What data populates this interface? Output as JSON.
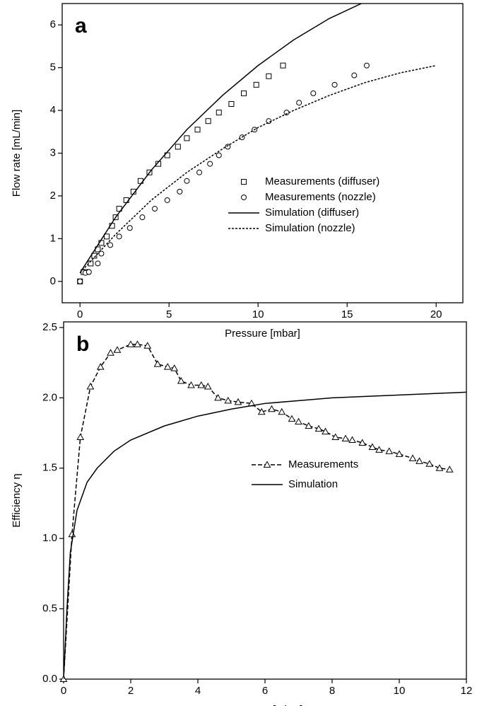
{
  "chart_data": [
    {
      "type": "line",
      "label": "a",
      "x_label": "Pressure [mbar]",
      "y_label": "Flow rate [mL/min]",
      "xlim": [
        -1,
        21.5
      ],
      "ylim": [
        -0.5,
        6.5
      ],
      "xticks": [
        0,
        5,
        10,
        15,
        20
      ],
      "yticks": [
        0,
        1,
        2,
        3,
        4,
        5,
        6
      ],
      "legend": "lower right",
      "series": [
        {
          "name": "Measurements (diffuser)",
          "color": "#000000",
          "marker": "square",
          "line": "none",
          "x": [
            0,
            0.2,
            0.4,
            0.6,
            0.8,
            1.0,
            1.2,
            1.5,
            1.8,
            2.0,
            2.2,
            2.6,
            3.0,
            3.4,
            3.9,
            4.4,
            4.9,
            5.5,
            6.0,
            6.6,
            7.2,
            7.8,
            8.5,
            9.2,
            9.9,
            10.6,
            11.4
          ],
          "values": [
            0,
            0.22,
            0.22,
            0.42,
            0.6,
            0.75,
            0.9,
            1.05,
            1.3,
            1.5,
            1.7,
            1.9,
            2.1,
            2.35,
            2.55,
            2.75,
            2.95,
            3.15,
            3.35,
            3.55,
            3.75,
            3.95,
            4.15,
            4.4,
            4.6,
            4.8,
            5.05
          ]
        },
        {
          "name": "Measurements (nozzle)",
          "color": "#000000",
          "marker": "circle",
          "line": "none",
          "x": [
            0,
            0.3,
            0.5,
            1.0,
            1.2,
            1.7,
            2.2,
            2.8,
            3.5,
            4.2,
            4.9,
            5.6,
            6.0,
            6.7,
            7.3,
            7.8,
            8.3,
            9.1,
            9.8,
            10.6,
            11.6,
            12.3,
            13.1,
            14.3,
            15.4,
            16.1
          ],
          "values": [
            0,
            0.2,
            0.22,
            0.42,
            0.65,
            0.85,
            1.05,
            1.25,
            1.5,
            1.7,
            1.9,
            2.1,
            2.35,
            2.55,
            2.75,
            2.95,
            3.15,
            3.37,
            3.55,
            3.75,
            3.95,
            4.18,
            4.4,
            4.6,
            4.82,
            5.05
          ]
        },
        {
          "name": "Simulation (diffuser)",
          "color": "#000000",
          "marker": "none",
          "line": "solid",
          "x": [
            0,
            2,
            4,
            6,
            8,
            10,
            12,
            14,
            15.8
          ],
          "values": [
            0.2,
            1.5,
            2.6,
            3.55,
            4.35,
            5.05,
            5.65,
            6.15,
            6.5
          ]
        },
        {
          "name": "Simulation (nozzle)",
          "color": "#000000",
          "marker": "none",
          "line": "dotted",
          "x": [
            0,
            2,
            4,
            6,
            8,
            10,
            12,
            14,
            16,
            18,
            20
          ],
          "values": [
            0.2,
            1.1,
            1.9,
            2.55,
            3.1,
            3.6,
            4.0,
            4.35,
            4.65,
            4.88,
            5.05
          ]
        }
      ]
    },
    {
      "type": "line",
      "label": "b",
      "x_label": "Pressure [mbar]",
      "y_label": "Efficiency η",
      "xlim": [
        0,
        12
      ],
      "ylim": [
        0,
        2.54
      ],
      "xticks": [
        0,
        2,
        4,
        6,
        8,
        10,
        12
      ],
      "yticks": [
        {
          "value": 0,
          "label": "0.0"
        },
        0.5,
        {
          "value": 1,
          "label": "1.0"
        },
        1.5,
        {
          "value": 2,
          "label": "2.0"
        },
        2.5
      ],
      "legend": "lower center",
      "series": [
        {
          "name": "Measurements",
          "color": "#000000",
          "marker": "triangle",
          "line": "dashed",
          "x": [
            0,
            0.25,
            0.5,
            0.8,
            1.1,
            1.4,
            1.6,
            2.0,
            2.2,
            2.5,
            2.8,
            3.1,
            3.3,
            3.5,
            3.8,
            4.1,
            4.3,
            4.6,
            4.9,
            5.2,
            5.6,
            5.9,
            6.2,
            6.5,
            6.8,
            7.0,
            7.3,
            7.6,
            7.8,
            8.1,
            8.4,
            8.6,
            8.9,
            9.2,
            9.4,
            9.7,
            10.0,
            10.4,
            10.6,
            10.9,
            11.2,
            11.5
          ],
          "values": [
            0,
            1.03,
            1.72,
            2.08,
            2.22,
            2.32,
            2.34,
            2.38,
            2.38,
            2.37,
            2.24,
            2.22,
            2.21,
            2.12,
            2.09,
            2.09,
            2.08,
            2.0,
            1.98,
            1.97,
            1.96,
            1.9,
            1.92,
            1.9,
            1.85,
            1.83,
            1.8,
            1.78,
            1.76,
            1.72,
            1.71,
            1.7,
            1.68,
            1.65,
            1.63,
            1.62,
            1.6,
            1.57,
            1.55,
            1.53,
            1.5,
            1.49
          ]
        },
        {
          "name": "Simulation",
          "color": "#000000",
          "marker": "none",
          "line": "solid",
          "x": [
            0,
            0.1,
            0.2,
            0.4,
            0.7,
            1,
            1.5,
            2,
            3,
            4,
            5,
            6,
            7,
            8,
            9,
            10,
            11,
            12
          ],
          "values": [
            0,
            0.5,
            0.9,
            1.2,
            1.4,
            1.5,
            1.62,
            1.7,
            1.8,
            1.87,
            1.92,
            1.96,
            1.98,
            2.0,
            2.01,
            2.02,
            2.03,
            2.04
          ]
        }
      ]
    }
  ]
}
